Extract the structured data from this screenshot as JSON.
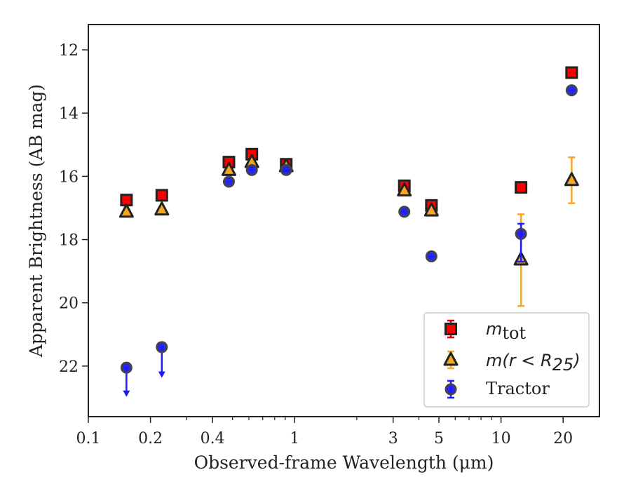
{
  "chart_data": {
    "type": "scatter",
    "title": "",
    "xlabel": "Observed-frame Wavelength (μm)",
    "ylabel": "Apparent Brightness (AB mag)",
    "xscale": "log",
    "xlim": [
      0.1,
      30
    ],
    "ylim": [
      23.6,
      11.2
    ],
    "y_inverted": true,
    "x_ticks": [
      {
        "value": 0.1,
        "label": "0.1"
      },
      {
        "value": 0.2,
        "label": "0.2"
      },
      {
        "value": 0.4,
        "label": "0.4"
      },
      {
        "value": 1,
        "label": "1"
      },
      {
        "value": 3,
        "label": "3"
      },
      {
        "value": 5,
        "label": "5"
      },
      {
        "value": 10,
        "label": "10"
      },
      {
        "value": 20,
        "label": "20"
      }
    ],
    "y_ticks": [
      {
        "value": 12,
        "label": "12"
      },
      {
        "value": 14,
        "label": "14"
      },
      {
        "value": 16,
        "label": "16"
      },
      {
        "value": 18,
        "label": "18"
      },
      {
        "value": 20,
        "label": "20"
      },
      {
        "value": 22,
        "label": "22"
      }
    ],
    "legend_position": "lower-right",
    "series": [
      {
        "name": "m_tot",
        "legend_label": {
          "main": "m",
          "sub": "tot"
        },
        "marker": "square",
        "color": "#ff0000",
        "edge_color": "#222222",
        "error_color": "#dd0000",
        "points": [
          {
            "x": 0.153,
            "y": 16.75
          },
          {
            "x": 0.227,
            "y": 16.6
          },
          {
            "x": 0.48,
            "y": 15.55
          },
          {
            "x": 0.62,
            "y": 15.3
          },
          {
            "x": 0.91,
            "y": 15.62
          },
          {
            "x": 3.4,
            "y": 16.3
          },
          {
            "x": 4.6,
            "y": 16.92
          },
          {
            "x": 12.5,
            "y": 16.35
          },
          {
            "x": 22.0,
            "y": 12.72
          }
        ]
      },
      {
        "name": "m(r < R25)",
        "legend_label": {
          "main": "m(r < R",
          "sub": "25",
          "tail": ")"
        },
        "marker": "triangle",
        "color": "#f5a623",
        "edge_color": "#222222",
        "error_color": "#f5a623",
        "points": [
          {
            "x": 0.153,
            "y": 17.12
          },
          {
            "x": 0.227,
            "y": 17.05
          },
          {
            "x": 0.48,
            "y": 15.8
          },
          {
            "x": 0.62,
            "y": 15.55
          },
          {
            "x": 0.91,
            "y": 15.68
          },
          {
            "x": 3.4,
            "y": 16.45
          },
          {
            "x": 4.6,
            "y": 17.08
          },
          {
            "x": 12.5,
            "y": 18.63,
            "err_low": 17.2,
            "err_high": 20.1
          },
          {
            "x": 22.0,
            "y": 16.12,
            "err_low": 15.4,
            "err_high": 16.85
          }
        ]
      },
      {
        "name": "Tractor",
        "legend_label": {
          "main": "Tractor"
        },
        "marker": "circle",
        "color": "#1a1aff",
        "edge_color": "#444444",
        "error_color": "#1a1aff",
        "points": [
          {
            "x": 0.153,
            "y": 22.05,
            "upper_limit": true,
            "limit_to": 22.95
          },
          {
            "x": 0.227,
            "y": 21.4,
            "upper_limit": true,
            "limit_to": 22.35
          },
          {
            "x": 0.48,
            "y": 16.17
          },
          {
            "x": 0.62,
            "y": 15.8
          },
          {
            "x": 0.91,
            "y": 15.8
          },
          {
            "x": 3.4,
            "y": 17.12
          },
          {
            "x": 4.6,
            "y": 18.53
          },
          {
            "x": 12.5,
            "y": 17.82,
            "err_low": 17.5,
            "err_high": 18.7
          },
          {
            "x": 22.0,
            "y": 13.28
          }
        ]
      }
    ]
  }
}
